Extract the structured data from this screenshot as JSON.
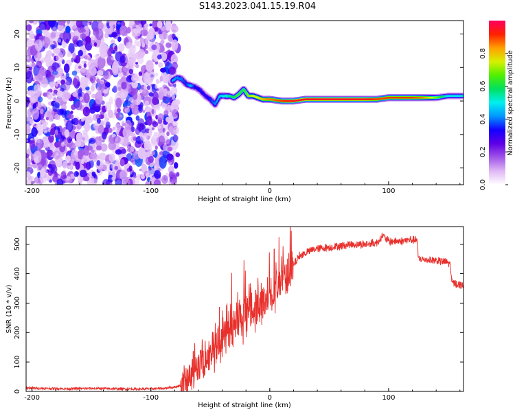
{
  "title": "S143.2023.041.15.19.R04",
  "chart_data": [
    {
      "type": "heatmap",
      "xlabel": "Height of straight line (km)",
      "ylabel": "Frequency (Hz)",
      "xlim": [
        -205,
        163
      ],
      "ylim": [
        -25,
        24
      ],
      "x_ticks": [
        -200,
        -100,
        0,
        100
      ],
      "y_ticks": [
        -20,
        -10,
        0,
        10,
        20
      ],
      "noise_region_x": [
        -205,
        -82
      ],
      "signal_track": {
        "x": [
          -82,
          -78,
          -74,
          -70,
          -66,
          -62,
          -58,
          -54,
          -50,
          -46,
          -42,
          -38,
          -34,
          -30,
          -26,
          -22,
          -18,
          -14,
          -10,
          -6,
          -2,
          0,
          10,
          20,
          30,
          40,
          60,
          80,
          90,
          100,
          110,
          120,
          130,
          140,
          150,
          163
        ],
        "frequency": [
          6,
          7,
          6.5,
          5,
          4.5,
          4,
          3,
          1.5,
          0.5,
          -1,
          1.5,
          1.5,
          1.5,
          1,
          2,
          3.5,
          1.5,
          1.5,
          1,
          0.5,
          0.5,
          0.5,
          0,
          0,
          0.5,
          0.5,
          0.5,
          0.5,
          0.5,
          1,
          1,
          1,
          1,
          1,
          1.5,
          1.5
        ],
        "amplitude": [
          0.45,
          0.4,
          0.4,
          0.35,
          0.45,
          0.3,
          0.35,
          0.3,
          0.35,
          0.4,
          0.45,
          0.5,
          0.55,
          0.6,
          0.65,
          0.6,
          0.7,
          0.75,
          0.75,
          0.8,
          0.85,
          0.85,
          0.9,
          0.95,
          0.95,
          0.95,
          0.95,
          0.95,
          0.9,
          0.9,
          0.9,
          0.9,
          0.85,
          0.7,
          0.5,
          0.5
        ]
      },
      "colorbar": {
        "label": "Normalized spectral amplitude",
        "range": [
          0.0,
          1.0
        ],
        "ticks": [
          0.0,
          0.2,
          0.4,
          0.6,
          0.8
        ],
        "colors": [
          "#ffffff",
          "#dfb8f5",
          "#a055e8",
          "#5f00e6",
          "#1400ff",
          "#0096ff",
          "#00f0f0",
          "#00e060",
          "#50f000",
          "#d8f000",
          "#ffa000",
          "#ff2000",
          "#ff0060"
        ]
      }
    },
    {
      "type": "line",
      "xlabel": "Height of straight line (km)",
      "ylabel": "SNR (10 * v/v)",
      "xlim": [
        -205,
        163
      ],
      "ylim": [
        0,
        560
      ],
      "x_ticks": [
        -200,
        -100,
        0,
        100
      ],
      "y_ticks": [
        0,
        100,
        200,
        300,
        400,
        500
      ],
      "color": "#e8302c",
      "series": [
        {
          "x": [
            -205,
            -190,
            -170,
            -150,
            -130,
            -110,
            -90,
            -80,
            -75,
            -70,
            -65,
            -60,
            -55,
            -50,
            -45,
            -40,
            -35,
            -30,
            -25,
            -20,
            -15,
            -10,
            -5,
            0,
            5,
            10,
            15,
            20,
            25,
            30,
            35,
            40,
            50,
            60,
            70,
            80,
            90,
            95,
            100,
            110,
            118,
            124,
            125,
            130,
            140,
            150,
            152,
            153,
            160,
            163
          ],
          "y": [
            12,
            10,
            9,
            10,
            9,
            8,
            10,
            15,
            20,
            35,
            60,
            80,
            110,
            130,
            160,
            180,
            200,
            220,
            240,
            255,
            270,
            290,
            310,
            330,
            350,
            380,
            400,
            430,
            460,
            470,
            480,
            485,
            490,
            495,
            500,
            500,
            505,
            530,
            510,
            510,
            515,
            515,
            450,
            448,
            445,
            438,
            430,
            370,
            362,
            360
          ]
        }
      ]
    }
  ]
}
